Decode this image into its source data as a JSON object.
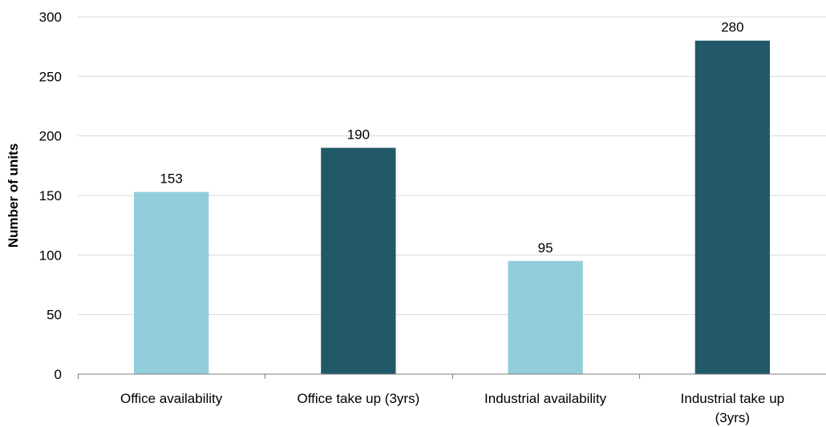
{
  "chart_data": {
    "type": "bar",
    "categories": [
      [
        "Office availability"
      ],
      [
        "Office take up (3yrs)"
      ],
      [
        "Industrial availability"
      ],
      [
        "Industrial take up",
        "(3yrs)"
      ]
    ],
    "values": [
      153,
      190,
      95,
      280
    ],
    "data_labels": [
      "153",
      "190",
      "95",
      "280"
    ],
    "bar_colors": [
      "#92cddc",
      "#215968",
      "#92cddc",
      "#215968"
    ],
    "title": "",
    "xlabel": "",
    "ylabel": "Number of units",
    "ylim": [
      0,
      300
    ],
    "yticks": [
      0,
      50,
      100,
      150,
      200,
      250,
      300
    ],
    "grid": true,
    "legend": "none"
  }
}
